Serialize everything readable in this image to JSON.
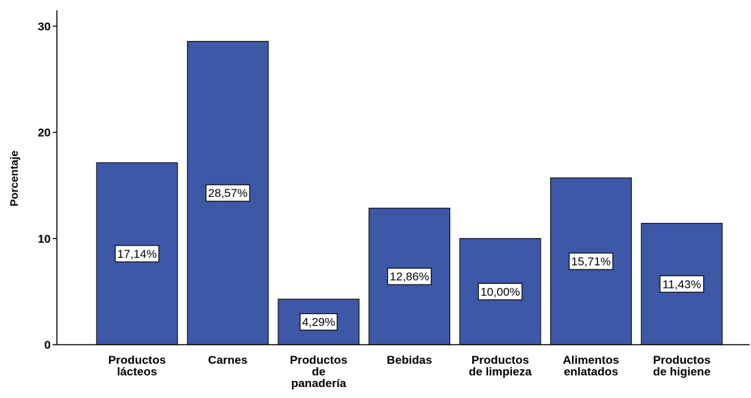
{
  "chart_data": {
    "type": "bar",
    "categories": [
      [
        "Productos",
        "lácteos"
      ],
      [
        "Carnes"
      ],
      [
        "Productos",
        "de",
        "panadería"
      ],
      [
        "Bebidas"
      ],
      [
        "Productos",
        "de limpieza"
      ],
      [
        "Alimentos",
        "enlatados"
      ],
      [
        "Productos",
        "de higiene"
      ]
    ],
    "values": [
      17.14,
      28.57,
      4.29,
      12.86,
      10.0,
      15.71,
      11.43
    ],
    "data_labels": [
      "17,14%",
      "28,57%",
      "4,29%",
      "12,86%",
      "10,00%",
      "15,71%",
      "11,43%"
    ],
    "ylabel": "Porcentaje",
    "xlabel": "",
    "ylim": [
      0,
      31.5
    ],
    "yticks": [
      0,
      10,
      20,
      30
    ],
    "grid": false,
    "colors": {
      "bar_fill": "#3e58a8",
      "bar_stroke": "#111111",
      "axis": "#000000",
      "label_box": "#ffffff"
    }
  }
}
